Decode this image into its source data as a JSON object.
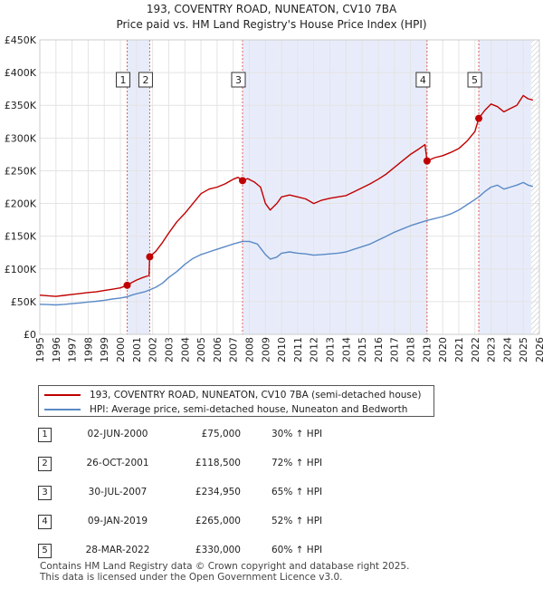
{
  "chart_data": {
    "type": "line",
    "title": "193, COVENTRY ROAD, NUNEATON, CV10 7BA",
    "subtitle": "Price paid vs. HM Land Registry's House Price Index (HPI)",
    "xlim": [
      1995,
      2026
    ],
    "ylim": [
      0,
      450000
    ],
    "x_ticks": [
      1995,
      1996,
      1997,
      1998,
      1999,
      2000,
      2001,
      2002,
      2003,
      2004,
      2005,
      2006,
      2007,
      2008,
      2009,
      2010,
      2011,
      2012,
      2013,
      2014,
      2015,
      2016,
      2017,
      2018,
      2019,
      2020,
      2021,
      2022,
      2023,
      2024,
      2025,
      2026
    ],
    "y_ticks": [
      {
        "value": 0,
        "label": "£0"
      },
      {
        "value": 50000,
        "label": "£50K"
      },
      {
        "value": 100000,
        "label": "£100K"
      },
      {
        "value": 150000,
        "label": "£150K"
      },
      {
        "value": 200000,
        "label": "£200K"
      },
      {
        "value": 250000,
        "label": "£250K"
      },
      {
        "value": 300000,
        "label": "£300K"
      },
      {
        "value": 350000,
        "label": "£350K"
      },
      {
        "value": 400000,
        "label": "£400K"
      },
      {
        "value": 450000,
        "label": "£450K"
      }
    ],
    "shaded_ownership": [
      [
        2000.42,
        2001.82
      ],
      [
        2007.58,
        2019.03
      ],
      [
        2022.24,
        2025.5
      ]
    ],
    "forecast_start": 2025.5,
    "colors": {
      "property": "#c00000",
      "hpi": "#5a8ac6",
      "shade": "#e8ecfa",
      "hatch": "#bdbdbd",
      "marker_line": "#e06060"
    },
    "series": [
      {
        "name": "193, COVENTRY ROAD, NUNEATON, CV10 7BA (semi-detached house)",
        "color": "#c00000",
        "points": [
          [
            1995.0,
            60000
          ],
          [
            1995.5,
            59000
          ],
          [
            1996.0,
            58000
          ],
          [
            1996.5,
            59500
          ],
          [
            1997.0,
            61000
          ],
          [
            1997.5,
            62500
          ],
          [
            1998.0,
            64000
          ],
          [
            1998.5,
            65000
          ],
          [
            1999.0,
            67000
          ],
          [
            1999.5,
            69000
          ],
          [
            2000.0,
            71000
          ],
          [
            2000.42,
            75000
          ],
          [
            2000.7,
            79000
          ],
          [
            2001.0,
            83000
          ],
          [
            2001.4,
            87000
          ],
          [
            2001.78,
            90000
          ],
          [
            2001.82,
            118500
          ],
          [
            2002.2,
            127000
          ],
          [
            2002.6,
            140000
          ],
          [
            2003.0,
            155000
          ],
          [
            2003.5,
            172000
          ],
          [
            2004.0,
            185000
          ],
          [
            2004.5,
            200000
          ],
          [
            2005.0,
            215000
          ],
          [
            2005.5,
            222000
          ],
          [
            2006.0,
            225000
          ],
          [
            2006.5,
            230000
          ],
          [
            2007.0,
            237000
          ],
          [
            2007.3,
            240000
          ],
          [
            2007.58,
            234950
          ],
          [
            2007.9,
            238000
          ],
          [
            2008.3,
            233000
          ],
          [
            2008.7,
            225000
          ],
          [
            2009.0,
            200000
          ],
          [
            2009.3,
            190000
          ],
          [
            2009.7,
            200000
          ],
          [
            2010.0,
            210000
          ],
          [
            2010.5,
            213000
          ],
          [
            2011.0,
            210000
          ],
          [
            2011.5,
            207000
          ],
          [
            2012.0,
            200000
          ],
          [
            2012.5,
            205000
          ],
          [
            2013.0,
            208000
          ],
          [
            2013.5,
            210000
          ],
          [
            2014.0,
            212000
          ],
          [
            2014.5,
            218000
          ],
          [
            2015.0,
            224000
          ],
          [
            2015.5,
            230000
          ],
          [
            2016.0,
            237000
          ],
          [
            2016.5,
            245000
          ],
          [
            2017.0,
            255000
          ],
          [
            2017.5,
            265000
          ],
          [
            2018.0,
            275000
          ],
          [
            2018.5,
            283000
          ],
          [
            2018.9,
            290000
          ],
          [
            2019.03,
            265000
          ],
          [
            2019.5,
            270000
          ],
          [
            2020.0,
            273000
          ],
          [
            2020.5,
            278000
          ],
          [
            2021.0,
            284000
          ],
          [
            2021.5,
            295000
          ],
          [
            2022.0,
            310000
          ],
          [
            2022.24,
            330000
          ],
          [
            2022.6,
            342000
          ],
          [
            2023.0,
            352000
          ],
          [
            2023.4,
            348000
          ],
          [
            2023.8,
            340000
          ],
          [
            2024.2,
            345000
          ],
          [
            2024.6,
            350000
          ],
          [
            2025.0,
            365000
          ],
          [
            2025.3,
            360000
          ],
          [
            2025.6,
            358000
          ]
        ]
      },
      {
        "name": "HPI: Average price, semi-detached house, Nuneaton and Bedworth",
        "color": "#5a8ac6",
        "points": [
          [
            1995.0,
            46000
          ],
          [
            1995.5,
            45500
          ],
          [
            1996.0,
            45000
          ],
          [
            1996.5,
            45800
          ],
          [
            1997.0,
            47000
          ],
          [
            1997.5,
            48000
          ],
          [
            1998.0,
            49500
          ],
          [
            1998.5,
            50500
          ],
          [
            1999.0,
            52000
          ],
          [
            1999.5,
            54000
          ],
          [
            2000.0,
            55500
          ],
          [
            2000.42,
            57500
          ],
          [
            2000.7,
            60000
          ],
          [
            2001.0,
            62000
          ],
          [
            2001.5,
            65000
          ],
          [
            2001.82,
            68000
          ],
          [
            2002.2,
            72000
          ],
          [
            2002.6,
            78000
          ],
          [
            2003.0,
            87000
          ],
          [
            2003.5,
            96000
          ],
          [
            2004.0,
            107000
          ],
          [
            2004.5,
            116000
          ],
          [
            2005.0,
            122000
          ],
          [
            2005.5,
            126000
          ],
          [
            2006.0,
            130000
          ],
          [
            2006.5,
            134000
          ],
          [
            2007.0,
            138000
          ],
          [
            2007.58,
            142000
          ],
          [
            2008.0,
            142000
          ],
          [
            2008.5,
            138000
          ],
          [
            2009.0,
            122000
          ],
          [
            2009.3,
            115000
          ],
          [
            2009.7,
            118000
          ],
          [
            2010.0,
            124000
          ],
          [
            2010.5,
            126000
          ],
          [
            2011.0,
            124000
          ],
          [
            2011.5,
            123000
          ],
          [
            2012.0,
            121000
          ],
          [
            2012.5,
            122000
          ],
          [
            2013.0,
            123000
          ],
          [
            2013.5,
            124000
          ],
          [
            2014.0,
            126000
          ],
          [
            2014.5,
            130000
          ],
          [
            2015.0,
            134000
          ],
          [
            2015.5,
            138000
          ],
          [
            2016.0,
            144000
          ],
          [
            2016.5,
            150000
          ],
          [
            2017.0,
            156000
          ],
          [
            2017.5,
            161000
          ],
          [
            2018.0,
            166000
          ],
          [
            2018.5,
            170000
          ],
          [
            2019.03,
            174000
          ],
          [
            2019.5,
            177000
          ],
          [
            2020.0,
            180000
          ],
          [
            2020.5,
            184000
          ],
          [
            2021.0,
            190000
          ],
          [
            2021.5,
            198000
          ],
          [
            2022.0,
            206000
          ],
          [
            2022.24,
            210000
          ],
          [
            2022.6,
            218000
          ],
          [
            2023.0,
            225000
          ],
          [
            2023.4,
            228000
          ],
          [
            2023.8,
            222000
          ],
          [
            2024.2,
            225000
          ],
          [
            2024.6,
            228000
          ],
          [
            2025.0,
            232000
          ],
          [
            2025.3,
            228000
          ],
          [
            2025.6,
            226000
          ]
        ]
      }
    ],
    "sales": [
      {
        "label": "1",
        "date": "02-JUN-2000",
        "price": "£75,000",
        "hpi_change": "30% ↑ HPI",
        "x": 2000.42,
        "y": 75000
      },
      {
        "label": "2",
        "date": "26-OCT-2001",
        "price": "£118,500",
        "hpi_change": "72% ↑ HPI",
        "x": 2001.82,
        "y": 118500
      },
      {
        "label": "3",
        "date": "30-JUL-2007",
        "price": "£234,950",
        "hpi_change": "65% ↑ HPI",
        "x": 2007.58,
        "y": 234950
      },
      {
        "label": "4",
        "date": "09-JAN-2019",
        "price": "£265,000",
        "hpi_change": "52% ↑ HPI",
        "x": 2019.03,
        "y": 265000
      },
      {
        "label": "5",
        "date": "28-MAR-2022",
        "price": "£330,000",
        "hpi_change": "60% ↑ HPI",
        "x": 2022.24,
        "y": 330000
      }
    ]
  },
  "legend": {
    "property_label": "193, COVENTRY ROAD, NUNEATON, CV10 7BA (semi-detached house)",
    "hpi_label": "HPI: Average price, semi-detached house, Nuneaton and Bedworth"
  },
  "footer": {
    "line1": "Contains HM Land Registry data © Crown copyright and database right 2025.",
    "line2": "This data is licensed under the Open Government Licence v3.0."
  }
}
